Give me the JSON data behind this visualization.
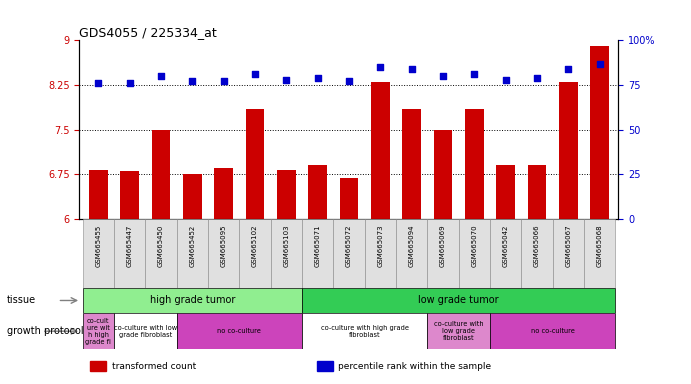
{
  "title": "GDS4055 / 225334_at",
  "samples": [
    "GSM665455",
    "GSM665447",
    "GSM665450",
    "GSM665452",
    "GSM665095",
    "GSM665102",
    "GSM665103",
    "GSM665071",
    "GSM665072",
    "GSM665073",
    "GSM665094",
    "GSM665069",
    "GSM665070",
    "GSM665042",
    "GSM665066",
    "GSM665067",
    "GSM665068"
  ],
  "bar_values": [
    6.82,
    6.8,
    7.5,
    6.75,
    6.85,
    7.85,
    6.82,
    6.9,
    6.68,
    8.3,
    7.85,
    7.5,
    7.85,
    6.9,
    6.9,
    8.3,
    8.9
  ],
  "percentile_values": [
    76,
    76,
    80,
    77,
    77,
    81,
    78,
    79,
    77,
    85,
    84,
    80,
    81,
    78,
    79,
    84,
    87
  ],
  "ylim_left": [
    6,
    9
  ],
  "ylim_right": [
    0,
    100
  ],
  "yticks_left": [
    6,
    6.75,
    7.5,
    8.25,
    9
  ],
  "yticks_right": [
    0,
    25,
    50,
    75,
    100
  ],
  "ytick_labels_right": [
    "0",
    "25",
    "50",
    "75",
    "100%"
  ],
  "bar_color": "#cc0000",
  "dot_color": "#0000cc",
  "tissue_row": [
    {
      "label": "high grade tumor",
      "color": "#90ee90",
      "start": 0,
      "end": 7
    },
    {
      "label": "low grade tumor",
      "color": "#33cc55",
      "start": 7,
      "end": 17
    }
  ],
  "growth_row": [
    {
      "label": "co-cult\nure wit\nh high\ngrade fi",
      "color": "#dd88cc",
      "start": 0,
      "end": 1
    },
    {
      "label": "co-culture with low\ngrade fibroblast",
      "color": "#ffffff",
      "start": 1,
      "end": 3
    },
    {
      "label": "no co-culture",
      "color": "#cc44bb",
      "start": 3,
      "end": 7
    },
    {
      "label": "co-culture with high grade\nfibroblast",
      "color": "#ffffff",
      "start": 7,
      "end": 11
    },
    {
      "label": "co-culture with\nlow grade\nfibroblast",
      "color": "#dd88cc",
      "start": 11,
      "end": 13
    },
    {
      "label": "no co-culture",
      "color": "#cc44bb",
      "start": 13,
      "end": 17
    }
  ],
  "tissue_label": "tissue",
  "growth_label": "growth protocol",
  "legend_items": [
    {
      "label": "transformed count",
      "color": "#cc0000"
    },
    {
      "label": "percentile rank within the sample",
      "color": "#0000cc"
    }
  ]
}
